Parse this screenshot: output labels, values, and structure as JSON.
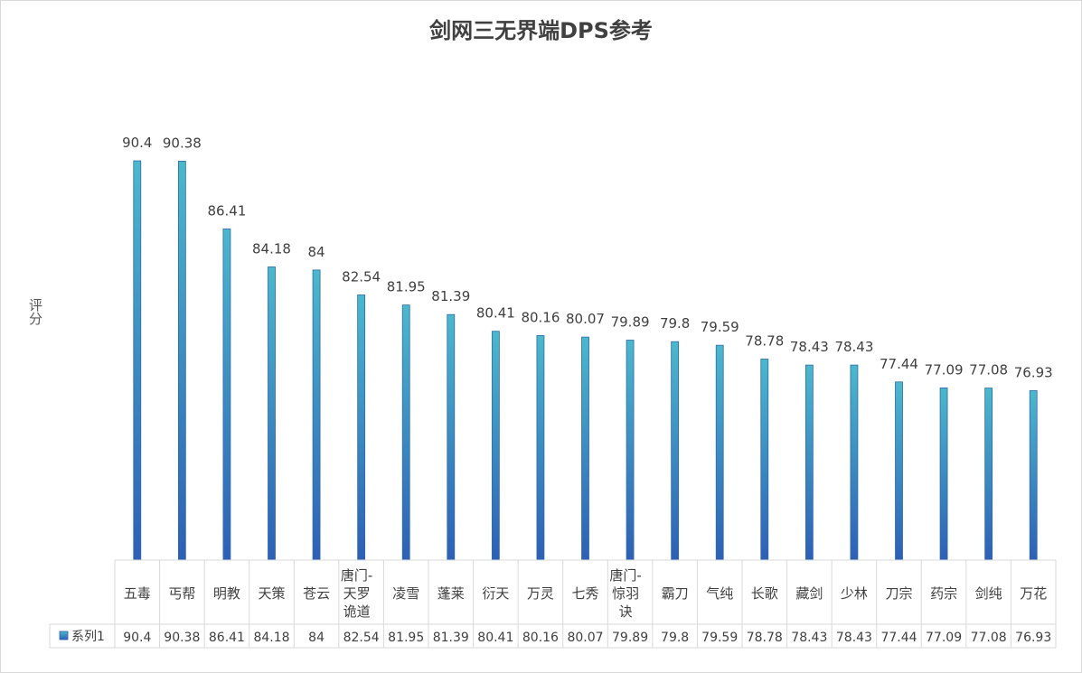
{
  "chart_data": {
    "type": "bar",
    "title": "剑网三无界端DPS参考",
    "ylabel": "评分",
    "xlabel": "",
    "legend_placement": "data-table",
    "colors": {
      "bar_top": "#4bb8cc",
      "bar_bottom": "#2e5fb5"
    },
    "categories": [
      [
        "五毒"
      ],
      [
        "丐帮"
      ],
      [
        "明教"
      ],
      [
        "天策"
      ],
      [
        "苍云"
      ],
      [
        "唐门-",
        "天罗",
        "诡道"
      ],
      [
        "凌雪"
      ],
      [
        "蓬莱"
      ],
      [
        "衍天"
      ],
      [
        "万灵"
      ],
      [
        "七秀"
      ],
      [
        "唐门-",
        "惊羽",
        "诀"
      ],
      [
        "霸刀"
      ],
      [
        "气纯"
      ],
      [
        "长歌"
      ],
      [
        "藏剑"
      ],
      [
        "少林"
      ],
      [
        "刀宗"
      ],
      [
        "药宗"
      ],
      [
        "剑纯"
      ],
      [
        "万花"
      ]
    ],
    "series": [
      {
        "name": "系列1",
        "values": [
          90.4,
          90.38,
          86.41,
          84.18,
          84,
          82.54,
          81.95,
          81.39,
          80.41,
          80.16,
          80.07,
          79.89,
          79.8,
          79.59,
          78.78,
          78.43,
          78.43,
          77.44,
          77.09,
          77.08,
          76.93
        ],
        "labels": [
          "90.4",
          "90.38",
          "86.41",
          "84.18",
          "84",
          "82.54",
          "81.95",
          "81.39",
          "80.41",
          "80.16",
          "80.07",
          "79.89",
          "79.8",
          "79.59",
          "78.78",
          "78.43",
          "78.43",
          "77.44",
          "77.09",
          "77.08",
          "76.93"
        ]
      }
    ],
    "ylim": [
      67,
      91.5
    ],
    "grid": false
  }
}
